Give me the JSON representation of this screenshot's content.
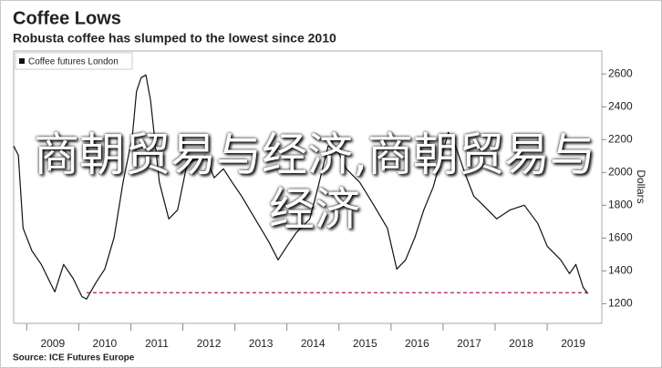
{
  "chart_data": {
    "type": "line",
    "title": "Coffee Lows",
    "subtitle": "Robusta coffee has slumped to the lowest since 2010",
    "y_label": "Dollars",
    "source": "Source: ICE Futures Europe",
    "overlay_text": "商朝贸易与经济,商朝贸易与经济",
    "xlim": [
      2008.75,
      2020.05
    ],
    "ylim": [
      1080,
      2740
    ],
    "xticks": [
      2009,
      2010,
      2011,
      2012,
      2013,
      2014,
      2015,
      2016,
      2017,
      2018,
      2019
    ],
    "yticks": [
      1200,
      1400,
      1600,
      1800,
      2000,
      2200,
      2400,
      2600
    ],
    "grid": false,
    "legend": "top-left",
    "series": [
      {
        "name": "Coffee futures London",
        "color": "#111111",
        "x": [
          2008.75,
          2008.84,
          2008.93,
          2009.1,
          2009.28,
          2009.45,
          2009.54,
          2009.71,
          2009.89,
          2010.06,
          2010.15,
          2010.33,
          2010.5,
          2010.68,
          2010.85,
          2011.03,
          2011.11,
          2011.2,
          2011.29,
          2011.38,
          2011.55,
          2011.73,
          2011.9,
          2012.08,
          2012.25,
          2012.43,
          2012.6,
          2012.78,
          2012.95,
          2013.13,
          2013.39,
          2013.65,
          2013.83,
          2014.0,
          2014.18,
          2014.44,
          2014.62,
          2014.79,
          2014.97,
          2015.14,
          2015.4,
          2015.67,
          2015.93,
          2016.11,
          2016.28,
          2016.46,
          2016.63,
          2016.81,
          2016.98,
          2017.1,
          2017.24,
          2017.42,
          2017.59,
          2017.77,
          2018.03,
          2018.29,
          2018.56,
          2018.82,
          2019.0,
          2019.26,
          2019.43,
          2019.55,
          2019.69,
          2019.78
        ],
        "values": [
          2161,
          2105,
          1661,
          1522,
          1439,
          1328,
          1272,
          1439,
          1355,
          1244,
          1228,
          1328,
          1411,
          1605,
          1939,
          2217,
          2494,
          2578,
          2594,
          2439,
          1939,
          1717,
          1772,
          2050,
          2078,
          2105,
          1967,
          2022,
          1939,
          1855,
          1717,
          1578,
          1467,
          1550,
          1633,
          1717,
          1939,
          2161,
          2133,
          2022,
          1939,
          1800,
          1661,
          1411,
          1467,
          1605,
          1772,
          1911,
          2105,
          2244,
          2161,
          1994,
          1855,
          1800,
          1717,
          1772,
          1800,
          1689,
          1550,
          1467,
          1383,
          1439,
          1300,
          1261
        ]
      }
    ],
    "hline": {
      "y": 1267,
      "xlim": [
        2010.15,
        2019.78
      ],
      "color": "#b8387a"
    }
  }
}
